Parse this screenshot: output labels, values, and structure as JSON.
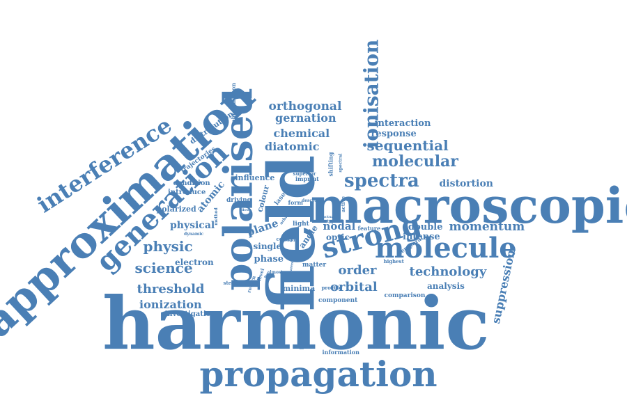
{
  "theme": {
    "ink": "#4a7fb5",
    "background": "#ffffff"
  },
  "words": [
    {
      "text": "harmonic"
    },
    {
      "text": "approximation"
    },
    {
      "text": "macroscopic"
    },
    {
      "text": "field"
    },
    {
      "text": "propagation"
    },
    {
      "text": "polarised"
    },
    {
      "text": "generation"
    },
    {
      "text": "interference"
    },
    {
      "text": "molecule"
    },
    {
      "text": "strong"
    },
    {
      "text": "ionisation"
    },
    {
      "text": "spectra"
    },
    {
      "text": "molecular"
    },
    {
      "text": "sequential"
    },
    {
      "text": "orthogonal"
    },
    {
      "text": "gernation"
    },
    {
      "text": "chemical"
    },
    {
      "text": "diatomic"
    },
    {
      "text": "interaction"
    },
    {
      "text": "response"
    },
    {
      "text": "distortion"
    },
    {
      "text": "momentum"
    },
    {
      "text": "double"
    },
    {
      "text": "intense"
    },
    {
      "text": "technology"
    },
    {
      "text": "analysis"
    },
    {
      "text": "suppression"
    },
    {
      "text": "comparison"
    },
    {
      "text": "order"
    },
    {
      "text": "orbital"
    },
    {
      "text": "science"
    },
    {
      "text": "physic"
    },
    {
      "text": "physical"
    },
    {
      "text": "threshold"
    },
    {
      "text": "ionization"
    },
    {
      "text": "investigation"
    },
    {
      "text": "electron"
    },
    {
      "text": "nodal"
    },
    {
      "text": "optic"
    },
    {
      "text": "plane"
    },
    {
      "text": "phase"
    },
    {
      "text": "single"
    },
    {
      "text": "minima"
    },
    {
      "text": "matter"
    },
    {
      "text": "component"
    },
    {
      "text": "information"
    },
    {
      "text": "polarisation"
    },
    {
      "text": "colour"
    },
    {
      "text": "laser"
    },
    {
      "text": "driving"
    },
    {
      "text": "influence"
    },
    {
      "text": "superior"
    },
    {
      "text": "imprint"
    },
    {
      "text": "form"
    },
    {
      "text": "descent"
    },
    {
      "text": "atomic"
    },
    {
      "text": "polarized"
    },
    {
      "text": "introduce"
    },
    {
      "text": "condition"
    },
    {
      "text": "trajectories"
    },
    {
      "text": "distribution"
    },
    {
      "text": "phenomenon"
    },
    {
      "text": "method"
    },
    {
      "text": "dynamic"
    },
    {
      "text": "velocity"
    },
    {
      "text": "steepest"
    },
    {
      "text": "return"
    },
    {
      "text": "level"
    },
    {
      "text": "angle"
    },
    {
      "text": "light"
    },
    {
      "text": "centre"
    },
    {
      "text": "feature"
    },
    {
      "text": "provide"
    },
    {
      "text": "highest"
    },
    {
      "text": "temporal"
    },
    {
      "text": "active"
    },
    {
      "text": "shifting"
    },
    {
      "text": "spectral"
    },
    {
      "text": "typical"
    },
    {
      "text": "actual"
    },
    {
      "text": "orbit"
    },
    {
      "text": "length"
    },
    {
      "text": "dipole"
    },
    {
      "text": "parent"
    },
    {
      "text": "almost"
    },
    {
      "text": "detail"
    },
    {
      "text": "allow"
    }
  ]
}
